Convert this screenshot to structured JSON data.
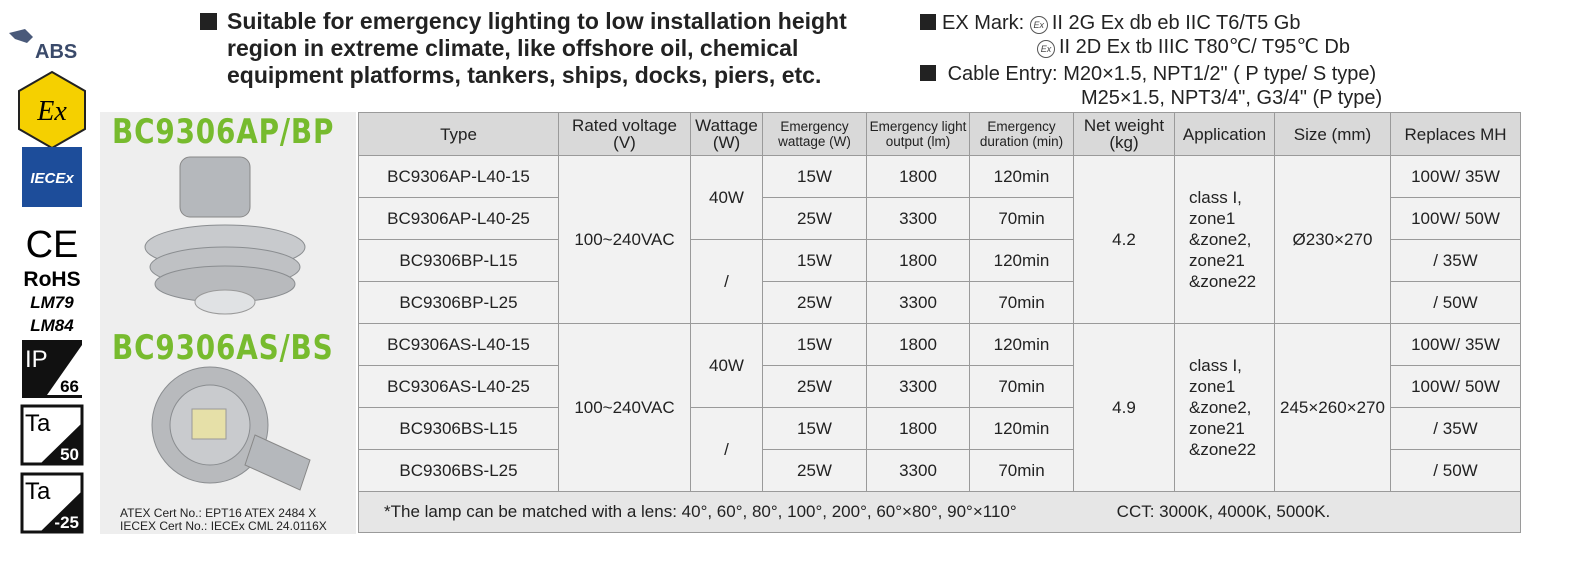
{
  "certs": {
    "abs": "ABS",
    "ex": "Ex",
    "iecex": "IECEx",
    "ce": "CE",
    "rohs": "RoHS",
    "lm79": "LM79",
    "lm84": "LM84",
    "ip": {
      "label": "IP",
      "value": "66"
    },
    "ta1": {
      "label": "Ta",
      "value": "50"
    },
    "ta2": {
      "label": "Ta",
      "value": "-25"
    }
  },
  "description": [
    "Suitable for emergency lighting to low installation height",
    "region in extreme climate, like offshore oil, chemical",
    "equipment platforms, tankers, ships, docks, piers, etc."
  ],
  "ex_mark": {
    "label": "EX Mark:",
    "icon": "Ex",
    "lines": [
      "II 2G Ex db eb IIC T6/T5 Gb",
      "II 2D Ex tb IIIC T80℃/ T95℃ Db"
    ]
  },
  "cable_entry": {
    "label": "Cable Entry:",
    "lines": [
      "M20×1.5, NPT1/2\" ( P type/ S type)",
      "M25×1.5, NPT3/4\", G3/4\" (P type)"
    ]
  },
  "models": [
    "BC9306AP/BP",
    "BC9306AS/BS"
  ],
  "certificates": [
    "ATEX Cert No.: EPT16 ATEX 2484 X",
    "IECEX Cert No.: IECEx CML 24.0116X"
  ],
  "table": {
    "headers": [
      "Type",
      "Rated voltage (V)",
      "Wattage (W)",
      "Emergency wattage (W)",
      "Emergency light output (lm)",
      "Emergency duration (min)",
      "Net weight (kg)",
      "Application",
      "Size (mm)",
      "Replaces MH"
    ],
    "groups": [
      {
        "voltage": "100~240VAC",
        "wattage": [
          "40W",
          "/"
        ],
        "weight": 4.2,
        "application": "class I,\nzone1\n&zone2,\nzone21\n&zone22",
        "size": "Ø230×270",
        "rows": [
          [
            "BC9306AP-L40-15",
            "15W",
            1800,
            "120min",
            "100W/ 35W"
          ],
          [
            "BC9306AP-L40-25",
            "25W",
            3300,
            "70min",
            "100W/ 50W"
          ],
          [
            "BC9306BP-L15",
            "15W",
            1800,
            "120min",
            "/ 35W"
          ],
          [
            "BC9306BP-L25",
            "25W",
            3300,
            "70min",
            "/ 50W"
          ]
        ]
      },
      {
        "voltage": "100~240VAC",
        "wattage": [
          "40W",
          "/"
        ],
        "weight": 4.9,
        "application": "class I,\nzone1\n&zone2,\nzone21\n&zone22",
        "size": "245×260×270",
        "rows": [
          [
            "BC9306AS-L40-15",
            "15W",
            1800,
            "120min",
            "100W/ 35W"
          ],
          [
            "BC9306AS-L40-25",
            "25W",
            3300,
            "70min",
            "100W/ 50W"
          ],
          [
            "BC9306BS-L15",
            "15W",
            1800,
            "120min",
            "/ 35W"
          ],
          [
            "BC9306BS-L25",
            "25W",
            3300,
            "70min",
            "/ 50W"
          ]
        ]
      }
    ],
    "footnote": "*The lamp can be matched with a lens: 40°, 60°, 80°, 100°, 200°, 60°×80°, 90°×110°",
    "cct": "CCT: 3000K, 4000K, 5000K."
  }
}
